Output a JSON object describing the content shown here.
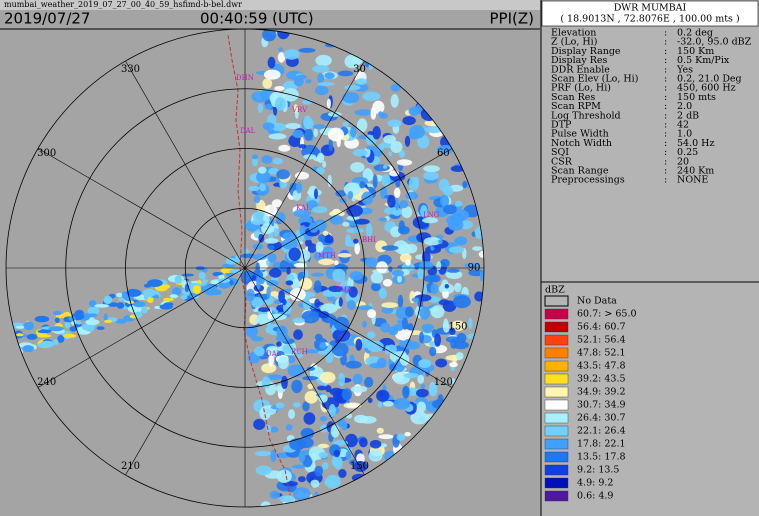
{
  "header": {
    "filename": "mumbai_weather_2019_07_27_00_40_59_hsfimd-b-bel.dwr",
    "date": "2019/07/27",
    "time": "00:40:59 (UTC)",
    "product": "PPI(Z)"
  },
  "plot": {
    "azimuth_labels": [
      30,
      60,
      90,
      120,
      150,
      210,
      240,
      300,
      330
    ],
    "range_label": "150",
    "stations": [
      "DHN",
      "VRV",
      "DAL",
      "KAL",
      "BHI",
      "MTH",
      "ZHA",
      "RCH",
      "DAL",
      "LNG"
    ]
  },
  "info": {
    "station": "DWR MUMBAI",
    "location": "( 18.9013N , 72.8076E , 100.00 mts )",
    "separator": ":",
    "rows": [
      [
        "Elevation",
        "0.2 deg"
      ],
      [
        "Z (Lo, Hi)",
        "-32.0, 95.0 dBZ"
      ],
      [
        "Display Range",
        "150 Km"
      ],
      [
        "Display Res",
        "0.5 Km/Pix"
      ],
      [
        "DDR Enable",
        "Yes"
      ],
      [
        "Scan Elev (Lo, Hi)",
        "0.2, 21.0 Deg"
      ],
      [
        "PRF (Lo, Hi)",
        "450, 600 Hz"
      ],
      [
        "Scan Res",
        "150 mts"
      ],
      [
        "Scan RPM",
        "2.0"
      ],
      [
        "Log Threshold",
        "2 dB"
      ],
      [
        "DTP",
        "42"
      ],
      [
        "Pulse Width",
        "1.0"
      ],
      [
        "Notch Width",
        "54.0 Hz"
      ],
      [
        "SQI",
        "0.25"
      ],
      [
        "CSR",
        "20"
      ],
      [
        "Scan Range",
        "240 Km"
      ],
      [
        "Preprocessings",
        "NONE"
      ]
    ]
  },
  "legend": {
    "title": "dBZ",
    "no_data": "No Data",
    "items": [
      {
        "label": "60.7: > 65.0",
        "color": "#c8004a"
      },
      {
        "label": "56.4: 60.7",
        "color": "#c00000"
      },
      {
        "label": "52.1: 56.4",
        "color": "#ff4010"
      },
      {
        "label": "47.8: 52.1",
        "color": "#ff8000"
      },
      {
        "label": "43.5: 47.8",
        "color": "#ffb000"
      },
      {
        "label": "39.2: 43.5",
        "color": "#ffe020"
      },
      {
        "label": "34.9: 39.2",
        "color": "#fff4b0"
      },
      {
        "label": "30.7: 34.9",
        "color": "#ffffff"
      },
      {
        "label": "26.4: 30.7",
        "color": "#a8f0ff"
      },
      {
        "label": "22.1: 26.4",
        "color": "#70d0ff"
      },
      {
        "label": "17.8: 22.1",
        "color": "#40a0ff"
      },
      {
        "label": "13.5: 17.8",
        "color": "#2078f0"
      },
      {
        "label": "9.2: 13.5",
        "color": "#1040e0"
      },
      {
        "label": "4.9: 9.2",
        "color": "#0010b8"
      },
      {
        "label": "0.6: 4.9",
        "color": "#5018a0"
      }
    ]
  }
}
